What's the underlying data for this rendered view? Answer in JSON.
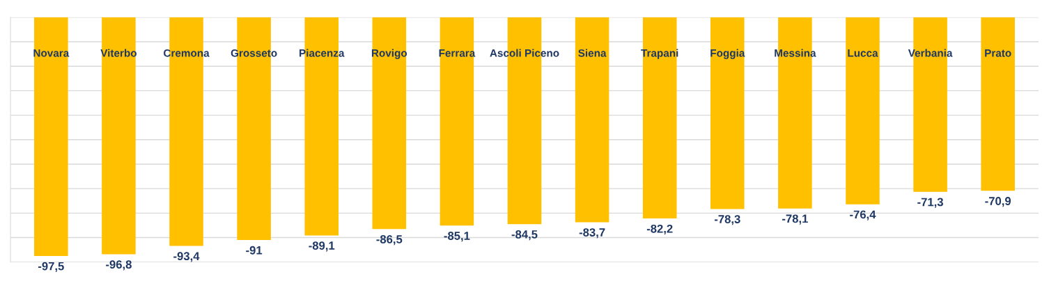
{
  "chart_data": {
    "type": "bar",
    "categories": [
      "Novara",
      "Viterbo",
      "Cremona",
      "Grosseto",
      "Piacenza",
      "Rovigo",
      "Ferrara",
      "Ascoli Piceno",
      "Siena",
      "Trapani",
      "Foggia",
      "Messina",
      "Lucca",
      "Verbania",
      "Prato"
    ],
    "values": [
      -97.5,
      -96.8,
      -93.4,
      -91,
      -89.1,
      -86.5,
      -85.1,
      -84.5,
      -83.7,
      -82.2,
      -78.3,
      -78.1,
      -76.4,
      -71.3,
      -70.9
    ],
    "color": "#ffc000",
    "ylim": [
      -100,
      0
    ],
    "yticks": [
      {
        "value": -100,
        "label": null
      },
      {
        "value": -90,
        "label": null
      },
      {
        "value": -80,
        "label": null
      },
      {
        "value": -70,
        "label": null
      },
      {
        "value": -60,
        "label": null
      },
      {
        "value": -50,
        "label": null
      },
      {
        "value": -40,
        "label": null
      },
      {
        "value": -30,
        "label": null
      },
      {
        "value": -20,
        "label": null
      },
      {
        "value": -10,
        "label": null
      },
      {
        "value": 0,
        "label": null
      }
    ],
    "grid": "y",
    "value_labels": [
      "-97,5",
      "-96,8",
      "-93,4",
      "-91",
      "-89,1",
      "-86,5",
      "-85,1",
      "-84,5",
      "-83,7",
      "-82,2",
      "-78,3",
      "-78,1",
      "-76,4",
      "-71,3",
      "-70,9"
    ],
    "tick_labels": "x"
  }
}
